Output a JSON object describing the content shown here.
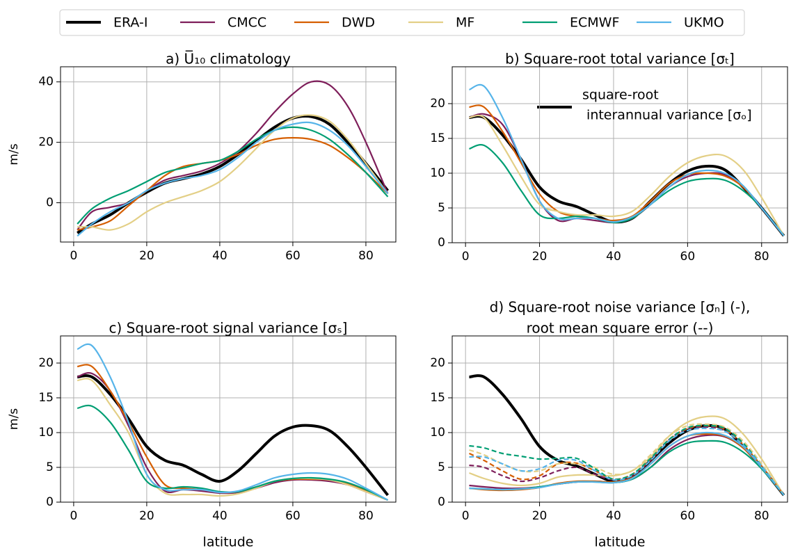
{
  "chart_data": [
    {
      "type": "line",
      "title": [
        "a) U̅₁₀ climatology"
      ],
      "y_label": "m/s",
      "legend": "top",
      "x": [
        1,
        5,
        10,
        15,
        20,
        25,
        30,
        35,
        40,
        45,
        50,
        55,
        60,
        65,
        70,
        75,
        80,
        86
      ],
      "xlim": [
        -3.6,
        88.2
      ],
      "xticks": [
        0,
        20,
        40,
        60,
        80
      ],
      "ylim": [
        -13,
        45
      ],
      "yticks": [
        0,
        20,
        40
      ],
      "grid": true,
      "series": [
        {
          "name": "ERA-I",
          "color": "#000000",
          "values": [
            -10,
            -7,
            -4,
            0,
            3.5,
            6.5,
            8,
            9.5,
            12,
            16,
            20.5,
            25,
            28,
            28.5,
            26,
            20,
            13,
            4
          ]
        },
        {
          "name": "CMCC",
          "color": "#7e1e5a",
          "values": [
            -9,
            -3,
            -1.5,
            0,
            4,
            7.5,
            9,
            10.5,
            13,
            17,
            23,
            30,
            36,
            40,
            39,
            32,
            20,
            3
          ]
        },
        {
          "name": "DWD",
          "color": "#d55e00",
          "values": [
            -9,
            -8,
            -6,
            -1,
            4,
            9,
            12,
            13,
            14,
            16,
            19,
            21,
            21.5,
            21,
            19,
            15,
            10,
            3
          ]
        },
        {
          "name": "MF",
          "color": "#e3cf86",
          "values": [
            -8,
            -8,
            -9,
            -7,
            -3,
            0,
            2,
            4,
            7,
            12,
            18,
            24,
            28,
            29,
            27,
            21,
            13,
            3
          ]
        },
        {
          "name": "ECMWF",
          "color": "#009e73",
          "values": [
            -7,
            -2,
            1.5,
            4,
            7,
            10,
            11.5,
            13,
            14,
            17,
            21,
            24,
            25,
            24,
            21,
            16,
            10,
            2
          ]
        },
        {
          "name": "UKMO",
          "color": "#56b4e9",
          "values": [
            -11,
            -7,
            -3,
            0,
            4,
            6.5,
            8,
            9,
            11,
            15,
            20,
            24,
            26,
            26.5,
            24,
            19,
            12,
            3
          ]
        }
      ]
    },
    {
      "type": "line",
      "title": [
        "b) Square-root total variance [σₜ]"
      ],
      "annotation": [
        "square-root",
        " interannual variance [σₒ]"
      ],
      "x": [
        1,
        5,
        10,
        15,
        20,
        25,
        30,
        35,
        40,
        45,
        50,
        55,
        60,
        65,
        70,
        75,
        80,
        86
      ],
      "xlim": [
        -3.6,
        87
      ],
      "xticks": [
        0,
        20,
        40,
        60,
        80
      ],
      "ylim": [
        0,
        25.3
      ],
      "yticks": [
        0,
        5,
        10,
        15,
        20
      ],
      "grid": true,
      "series": [
        {
          "name": "ERA-I",
          "color": "#000000",
          "values": [
            18,
            18,
            15.5,
            12,
            8,
            6,
            5.2,
            4,
            3,
            3.5,
            6,
            8.5,
            10.3,
            11,
            10.5,
            8,
            5,
            1
          ]
        },
        {
          "name": "CMCC",
          "color": "#7e1e5a",
          "values": [
            18,
            18.5,
            17,
            12,
            6,
            3.2,
            3.5,
            3.2,
            2.9,
            3.5,
            5.5,
            8,
            9.5,
            10,
            9.8,
            8,
            5,
            1
          ]
        },
        {
          "name": "DWD",
          "color": "#d55e00",
          "values": [
            19.5,
            19.5,
            16,
            11.5,
            7,
            4.5,
            3.8,
            3.5,
            3.2,
            3.8,
            6,
            8.5,
            9.8,
            10,
            9.6,
            8,
            5,
            1
          ]
        },
        {
          "name": "MF",
          "color": "#e3cf86",
          "values": [
            18,
            18,
            14,
            9.5,
            5.5,
            4.5,
            4,
            4,
            3.8,
            4.5,
            6.8,
            9.5,
            11.5,
            12.5,
            12.5,
            10.5,
            6.5,
            1
          ]
        },
        {
          "name": "ECMWF",
          "color": "#009e73",
          "values": [
            13.5,
            14,
            11.5,
            7.5,
            4,
            3.5,
            3.8,
            3.5,
            2.9,
            3.5,
            5.5,
            7.5,
            8.8,
            9.2,
            9,
            7.5,
            5,
            1
          ]
        },
        {
          "name": "UKMO",
          "color": "#56b4e9",
          "values": [
            22,
            22.5,
            18,
            12,
            6,
            3.5,
            3.5,
            3.5,
            3,
            3.7,
            5.5,
            8,
            9.8,
            10.4,
            10,
            8.2,
            5,
            1
          ]
        }
      ]
    },
    {
      "type": "line",
      "title": [
        "c) Square-root signal variance [σₛ]"
      ],
      "y_label": "m/s",
      "x_label": "latitude",
      "x": [
        1,
        5,
        10,
        15,
        20,
        25,
        30,
        35,
        40,
        45,
        50,
        55,
        60,
        65,
        70,
        75,
        80,
        86
      ],
      "xlim": [
        -3.6,
        88.2
      ],
      "xticks": [
        0,
        20,
        40,
        60,
        80
      ],
      "ylim": [
        0,
        23.9
      ],
      "yticks": [
        0,
        5,
        10,
        15,
        20
      ],
      "grid": true,
      "series": [
        {
          "name": "ERA-I",
          "color": "#000000",
          "values": [
            18,
            18,
            15.5,
            12,
            8,
            6,
            5.3,
            4,
            3,
            4.5,
            7,
            9.5,
            10.8,
            11,
            10.3,
            8,
            5,
            1
          ]
        },
        {
          "name": "CMCC",
          "color": "#7e1e5a",
          "values": [
            18,
            18.5,
            16,
            11,
            5,
            1.6,
            1.8,
            1.6,
            1.3,
            1.4,
            2,
            2.8,
            3.2,
            3.2,
            3,
            2.5,
            1.5,
            0.3
          ]
        },
        {
          "name": "DWD",
          "color": "#d55e00",
          "values": [
            19.5,
            19.5,
            16,
            11.5,
            6.5,
            2.5,
            2,
            1.8,
            1.4,
            1.5,
            2.2,
            3,
            3.3,
            3.3,
            3.2,
            2.7,
            1.7,
            0.3
          ]
        },
        {
          "name": "MF",
          "color": "#e3cf86",
          "values": [
            17.5,
            17.5,
            14,
            10,
            4,
            1.3,
            1.1,
            1.1,
            0.9,
            1.2,
            2,
            3,
            3.4,
            3.4,
            3.2,
            2.5,
            1.5,
            0.3
          ]
        },
        {
          "name": "ECMWF",
          "color": "#009e73",
          "values": [
            13.5,
            13.8,
            11.5,
            7.5,
            3,
            2,
            2.2,
            2,
            1.5,
            1.5,
            2.2,
            3,
            3.4,
            3.5,
            3.3,
            2.8,
            1.8,
            0.3
          ]
        },
        {
          "name": "UKMO",
          "color": "#56b4e9",
          "values": [
            22,
            22.5,
            18,
            11.5,
            4,
            1.8,
            1.8,
            1.8,
            1.4,
            1.6,
            2.5,
            3.5,
            4,
            4.2,
            4,
            3.3,
            2,
            0.3
          ]
        }
      ]
    },
    {
      "type": "line",
      "title": [
        "d) Square-root noise variance [σₙ] (-),",
        "root mean square error (--)"
      ],
      "x_label": "latitude",
      "x": [
        1,
        5,
        10,
        15,
        20,
        25,
        30,
        35,
        40,
        45,
        50,
        55,
        60,
        65,
        70,
        75,
        80,
        86
      ],
      "xlim": [
        -3.6,
        87
      ],
      "xticks": [
        0,
        20,
        40,
        60,
        80
      ],
      "ylim": [
        0,
        23.9
      ],
      "yticks": [
        0,
        5,
        10,
        15,
        20
      ],
      "grid": true,
      "series": [
        {
          "name": "ERA-I",
          "color": "#000000",
          "values": [
            18,
            18,
            15.5,
            12,
            8,
            6,
            5.2,
            4,
            3,
            3.5,
            6,
            8.5,
            10.3,
            11,
            10.5,
            8,
            5,
            1
          ]
        },
        {
          "name": "CMCC",
          "color": "#7e1e5a",
          "values": [
            2.4,
            2.2,
            2,
            2,
            2.2,
            2.6,
            2.9,
            3,
            2.9,
            3.3,
            5,
            7.5,
            9,
            9.6,
            9.4,
            7.8,
            5,
            1
          ]
        },
        {
          "name": "DWD",
          "color": "#d55e00",
          "values": [
            2,
            1.8,
            1.7,
            1.8,
            2.1,
            2.7,
            3,
            3,
            2.9,
            3.5,
            5.5,
            8,
            9.5,
            9.8,
            9.5,
            7.8,
            5,
            1
          ]
        },
        {
          "name": "MF",
          "color": "#e3cf86",
          "values": [
            4.2,
            3.4,
            2.7,
            2.4,
            2.7,
            3.6,
            3.9,
            3.9,
            3.8,
            4.5,
            6.5,
            9.5,
            11.5,
            12.3,
            12,
            9.8,
            6.2,
            1
          ]
        },
        {
          "name": "ECMWF",
          "color": "#009e73",
          "values": [
            2,
            1.9,
            1.8,
            1.9,
            2.2,
            2.6,
            2.9,
            2.9,
            2.8,
            3.3,
            5,
            7.2,
            8.5,
            8.8,
            8.6,
            7.2,
            4.8,
            1
          ]
        },
        {
          "name": "UKMO",
          "color": "#56b4e9",
          "values": [
            2,
            1.9,
            1.8,
            1.9,
            2.1,
            2.6,
            2.9,
            2.9,
            2.8,
            3.4,
            5.5,
            8,
            9.5,
            10,
            9.6,
            8,
            5,
            1
          ]
        },
        {
          "name": "CMCC",
          "color": "#7e1e5a",
          "dashed": true,
          "values": [
            5.3,
            5,
            3.8,
            3,
            3.5,
            4.5,
            5,
            4,
            3.2,
            3.8,
            6,
            9,
            10.5,
            10.8,
            10.3,
            8.2,
            5.2,
            1
          ]
        },
        {
          "name": "DWD",
          "color": "#d55e00",
          "dashed": true,
          "values": [
            7,
            6,
            4.5,
            3.3,
            3.8,
            5.5,
            5.6,
            4.5,
            3.3,
            4,
            6.2,
            9,
            10.6,
            11,
            10.5,
            8.3,
            5.2,
            1
          ]
        },
        {
          "name": "MF",
          "color": "#e3cf86",
          "dashed": true,
          "values": [
            7.5,
            6.8,
            5.5,
            4.5,
            4.5,
            5.5,
            5.5,
            5,
            4,
            4.5,
            6.8,
            9.5,
            11,
            11.2,
            10.8,
            8.8,
            5.5,
            1
          ]
        },
        {
          "name": "ECMWF",
          "color": "#009e73",
          "dashed": true,
          "values": [
            8.1,
            7.8,
            7,
            6.6,
            6.2,
            6.3,
            6.3,
            4.8,
            3.3,
            4,
            6.3,
            9,
            10.7,
            11,
            10.6,
            8.5,
            5.2,
            1
          ]
        },
        {
          "name": "UKMO",
          "color": "#56b4e9",
          "dashed": true,
          "values": [
            6.5,
            6.5,
            5.5,
            4.5,
            4.8,
            6,
            6,
            4.5,
            3.2,
            3.8,
            6,
            8.8,
            10.3,
            10.6,
            10.2,
            8.2,
            5.2,
            1
          ]
        }
      ]
    }
  ]
}
